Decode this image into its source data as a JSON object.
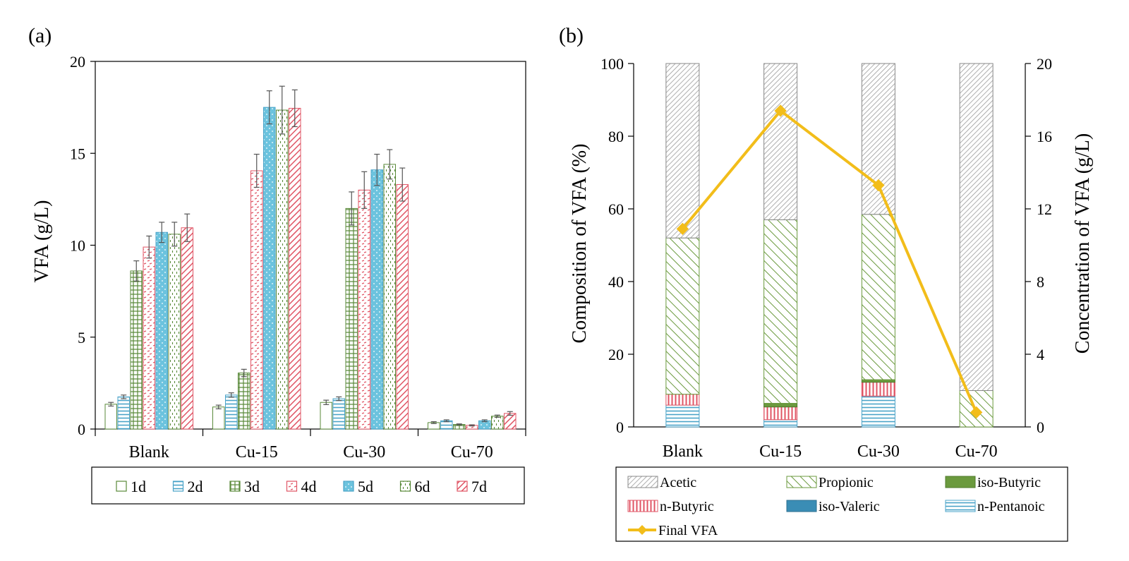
{
  "chart_data": [
    {
      "panel": "(a)",
      "type": "bar",
      "ylabel": "VFA (g/L)",
      "ylim": [
        0,
        20
      ],
      "yticks": [
        "0",
        "5",
        "10",
        "15",
        "20"
      ],
      "categories": [
        "Blank",
        "Cu-15",
        "Cu-30",
        "Cu-70"
      ],
      "series": [
        {
          "name": "1d",
          "pattern": "none",
          "color": "#5a8a3a",
          "values": [
            1.35,
            1.2,
            1.45,
            0.35
          ],
          "errors": [
            0.1,
            0.1,
            0.12,
            0.05
          ]
        },
        {
          "name": "2d",
          "pattern": "hlines",
          "color": "#4aa3c8",
          "values": [
            1.75,
            1.85,
            1.65,
            0.45
          ],
          "errors": [
            0.1,
            0.12,
            0.1,
            0.05
          ]
        },
        {
          "name": "3d",
          "pattern": "grid",
          "color": "#5a8a3a",
          "values": [
            8.6,
            3.05,
            12.0,
            0.25
          ],
          "errors": [
            0.55,
            0.2,
            0.9,
            0.03
          ]
        },
        {
          "name": "4d",
          "pattern": "dashes",
          "color": "#e05565",
          "values": [
            9.9,
            14.05,
            13.0,
            0.2
          ],
          "errors": [
            0.6,
            0.9,
            1.0,
            0.03
          ]
        },
        {
          "name": "5d",
          "pattern": "dots",
          "color": "#5bbbd8",
          "values": [
            10.7,
            17.5,
            14.1,
            0.45
          ],
          "errors": [
            0.55,
            0.9,
            0.85,
            0.05
          ]
        },
        {
          "name": "6d",
          "pattern": "dashes-v",
          "color": "#5a8a3a",
          "values": [
            10.6,
            17.35,
            14.4,
            0.7
          ],
          "errors": [
            0.65,
            1.3,
            0.8,
            0.06
          ]
        },
        {
          "name": "7d",
          "pattern": "diagonal",
          "color": "#e05565",
          "values": [
            10.95,
            17.45,
            13.3,
            0.85
          ],
          "errors": [
            0.75,
            1.0,
            0.9,
            0.1
          ]
        }
      ]
    },
    {
      "panel": "(b)",
      "type": "bar",
      "stacked": true,
      "ylabel": "Composition of VFA  (%)",
      "y2label": "Concentration of VFA (g/L)",
      "ylim": [
        0,
        100
      ],
      "y2lim": [
        0,
        20
      ],
      "yticks": [
        "0",
        "20",
        "40",
        "60",
        "80",
        "100"
      ],
      "y2ticks": [
        "0",
        "4",
        "8",
        "12",
        "16",
        "20"
      ],
      "categories": [
        "Blank",
        "Cu-15",
        "Cu-30",
        "Cu-70"
      ],
      "series": [
        {
          "name": "n-Pentanoic",
          "pattern": "hlines",
          "color": "#4aa3c8",
          "values": [
            6.0,
            2.0,
            8.5,
            0.0
          ]
        },
        {
          "name": "iso-Valeric",
          "pattern": "solid",
          "color": "#3a8db5",
          "values": [
            0.0,
            0.0,
            0.0,
            0.0
          ]
        },
        {
          "name": "n-Butyric",
          "pattern": "vlines",
          "color": "#e05565",
          "values": [
            3.0,
            3.5,
            3.8,
            0.0
          ]
        },
        {
          "name": "iso-Butyric",
          "pattern": "solid",
          "color": "#6b9a3e",
          "values": [
            0.0,
            1.0,
            0.7,
            0.0
          ]
        },
        {
          "name": "Propionic",
          "pattern": "diag-back",
          "color": "#6b9a3e",
          "values": [
            43.0,
            50.5,
            45.5,
            10.0
          ]
        },
        {
          "name": "Acetic",
          "pattern": "diag-gray",
          "color": "#999999",
          "values": [
            48.0,
            43.0,
            41.5,
            90.0
          ]
        }
      ],
      "line": {
        "name": "Final VFA",
        "color": "#f2bd1a",
        "values": [
          10.9,
          17.4,
          13.3,
          0.8
        ]
      },
      "legend_order": [
        "Acetic",
        "Propionic",
        "iso-Butyric",
        "n-Butyric",
        "iso-Valeric",
        "n-Pentanoic",
        "Final VFA"
      ]
    }
  ]
}
